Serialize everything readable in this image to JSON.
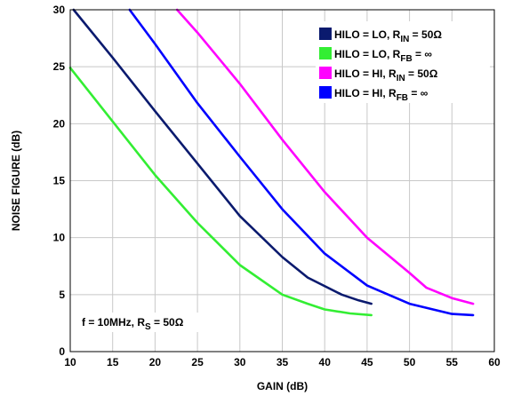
{
  "chart_data": {
    "type": "line",
    "xlabel": "GAIN (dB)",
    "ylabel": "NOISE FIGURE (dB)",
    "xlim": [
      10,
      60
    ],
    "ylim": [
      0,
      30
    ],
    "xticks": [
      10,
      15,
      20,
      25,
      30,
      35,
      40,
      45,
      50,
      55,
      60
    ],
    "yticks": [
      0,
      5,
      10,
      15,
      20,
      25,
      30
    ],
    "grid": true,
    "legend_position": "top-right",
    "annotation": {
      "main": "f = 10MHz, R",
      "sub": "S",
      "tail": " = 50Ω"
    },
    "series": [
      {
        "name": "HILO = LO, RIN = 50Ω",
        "label_main": "HILO = LO, R",
        "label_sub": "IN",
        "label_tail": " = 50Ω",
        "color": "#0a1a6e",
        "points": [
          [
            10.4,
            30
          ],
          [
            15,
            25.8
          ],
          [
            20,
            21.1
          ],
          [
            25,
            16.5
          ],
          [
            30,
            11.9
          ],
          [
            35,
            8.3
          ],
          [
            38,
            6.5
          ],
          [
            42,
            5.0
          ],
          [
            44,
            4.5
          ],
          [
            45.5,
            4.2
          ]
        ]
      },
      {
        "name": "HILO = LO, RFB = ∞",
        "label_main": "HILO = LO, R",
        "label_sub": "FB",
        "label_tail": " = ∞",
        "color": "#33ee33",
        "points": [
          [
            10,
            24.9
          ],
          [
            15,
            20.2
          ],
          [
            20,
            15.5
          ],
          [
            25,
            11.3
          ],
          [
            30,
            7.6
          ],
          [
            35,
            5.0
          ],
          [
            38,
            4.2
          ],
          [
            40,
            3.7
          ],
          [
            43,
            3.35
          ],
          [
            45.5,
            3.2
          ]
        ]
      },
      {
        "name": "HILO = HI, RIN = 50Ω",
        "label_main": "HILO = HI, R",
        "label_sub": "IN",
        "label_tail": " = 50Ω",
        "color": "#ff00ff",
        "points": [
          [
            22.6,
            30
          ],
          [
            25,
            28.0
          ],
          [
            30,
            23.5
          ],
          [
            35,
            18.6
          ],
          [
            40,
            14.0
          ],
          [
            45,
            10.0
          ],
          [
            50,
            6.9
          ],
          [
            52,
            5.6
          ],
          [
            55,
            4.7
          ],
          [
            57.5,
            4.2
          ]
        ]
      },
      {
        "name": "HILO = HI, RFB = ∞",
        "label_main": "HILO = HI, R",
        "label_sub": "FB",
        "label_tail": " = ∞",
        "color": "#0000ff",
        "points": [
          [
            17,
            30
          ],
          [
            20,
            27.0
          ],
          [
            25,
            21.8
          ],
          [
            30,
            17.1
          ],
          [
            35,
            12.5
          ],
          [
            40,
            8.6
          ],
          [
            45,
            5.8
          ],
          [
            50,
            4.2
          ],
          [
            55,
            3.3
          ],
          [
            57.5,
            3.2
          ]
        ]
      }
    ]
  }
}
